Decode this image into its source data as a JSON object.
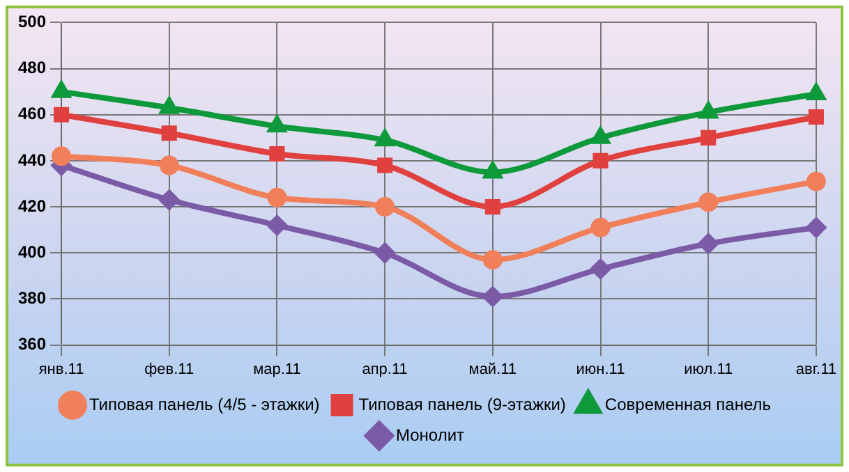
{
  "chart_data": {
    "type": "line",
    "categories": [
      "янв.11",
      "фев.11",
      "мар.11",
      "апр.11",
      "май.11",
      "июн.11",
      "июл.11",
      "авг.11"
    ],
    "series": [
      {
        "name": "Типовая панель (4/5 - этажки)",
        "color": "#f07f5a",
        "marker": "circle",
        "values": [
          442,
          438,
          424,
          420,
          397,
          411,
          422,
          431
        ]
      },
      {
        "name": "Типовая панель (9-этажки)",
        "color": "#e0413f",
        "marker": "square",
        "values": [
          460,
          452,
          443,
          438,
          420,
          440,
          450,
          459
        ]
      },
      {
        "name": "Современная панель",
        "color": "#0e9a3a",
        "marker": "triangle",
        "values": [
          470,
          463,
          455,
          449,
          435,
          450,
          461,
          469
        ]
      },
      {
        "name": "Монолит",
        "color": "#7b5aa6",
        "marker": "diamond",
        "values": [
          438,
          423,
          412,
          400,
          381,
          393,
          404,
          411
        ]
      }
    ],
    "ylim": [
      360,
      500
    ],
    "yticks": [
      360,
      380,
      400,
      420,
      440,
      460,
      480,
      500
    ],
    "grid": true,
    "legend": "bottom",
    "line_style": "solid"
  }
}
